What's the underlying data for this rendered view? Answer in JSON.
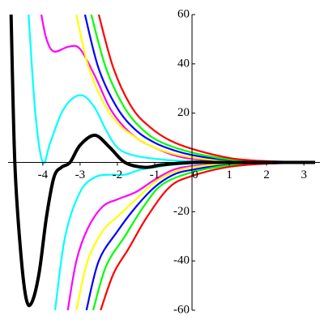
{
  "chart_data": {
    "type": "line",
    "xlim": [
      -4.93,
      3.43
    ],
    "ylim": [
      -60,
      60
    ],
    "xticks": [
      -4,
      -3,
      -2,
      -1,
      0,
      1,
      2,
      3
    ],
    "yticks": [
      -60,
      -40,
      -20,
      20,
      40,
      60
    ],
    "series": [
      {
        "color": "#00ffff",
        "x": [
          -4.38,
          -4.2,
          -4.0,
          -3.8,
          -3.5,
          -3.2,
          -2.9,
          -2.6,
          -2.3,
          -2.0,
          -1.6,
          -1.0,
          0,
          3.3
        ],
        "values": [
          60,
          20,
          0,
          8,
          20,
          26,
          27,
          22,
          13,
          6,
          3,
          1.5,
          0.5,
          0
        ]
      },
      {
        "color": "#00ffff",
        "x": [
          -3.67,
          -3.4,
          -3.0,
          -2.6,
          -2.2,
          -1.8,
          -1.4,
          -1.0,
          0,
          3.3
        ],
        "values": [
          -60,
          -30,
          -12,
          -6,
          -5,
          -5,
          -3,
          -2,
          -0.5,
          0
        ]
      },
      {
        "color": "#ff00ff",
        "x": [
          -4.04,
          -3.9,
          -3.7,
          -3.3,
          -3.0,
          -2.6,
          -2.2,
          -1.8,
          -1.4,
          -1.0,
          -0.5,
          0,
          1,
          3.3
        ],
        "values": [
          60,
          50,
          45,
          47,
          46,
          35,
          22,
          14,
          9,
          6,
          3,
          1.5,
          0.5,
          0
        ]
      },
      {
        "color": "#ff00ff",
        "x": [
          -3.33,
          -3.1,
          -2.8,
          -2.4,
          -2.0,
          -1.5,
          -1.0,
          -0.5,
          0,
          1,
          3.3
        ],
        "values": [
          -60,
          -40,
          -27,
          -18,
          -15,
          -12,
          -7,
          -3,
          -1.5,
          -0.5,
          0
        ]
      },
      {
        "color": "#ffff00",
        "x": [
          -3.1,
          -2.8,
          -2.4,
          -2.0,
          -1.5,
          -1.0,
          -0.5,
          0,
          1,
          3.3
        ],
        "values": [
          60,
          40,
          25,
          16,
          10,
          6,
          3.5,
          2,
          0.6,
          0
        ]
      },
      {
        "color": "#ffff00",
        "x": [
          -3.1,
          -2.8,
          -2.4,
          -2.0,
          -1.5,
          -1.0,
          -0.5,
          0,
          1,
          3.3
        ],
        "values": [
          -60,
          -40,
          -28,
          -22,
          -15,
          -8,
          -4,
          -2,
          -0.6,
          0
        ]
      },
      {
        "color": "#0000ff",
        "x": [
          -2.87,
          -2.5,
          -2.0,
          -1.5,
          -1.0,
          -0.5,
          0,
          1,
          3.3
        ],
        "values": [
          60,
          38,
          22,
          13,
          8,
          5,
          3,
          1,
          0
        ]
      },
      {
        "color": "#0000ff",
        "x": [
          -2.83,
          -2.5,
          -2.0,
          -1.5,
          -1.0,
          -0.5,
          0,
          1,
          3.3
        ],
        "values": [
          -60,
          -40,
          -28,
          -18,
          -10,
          -5,
          -3,
          -1,
          0
        ]
      },
      {
        "color": "#00ff00",
        "x": [
          -2.7,
          -2.3,
          -1.8,
          -1.3,
          -0.8,
          0,
          1,
          2,
          3.3
        ],
        "values": [
          60,
          38,
          22,
          13,
          8,
          4,
          1.2,
          0.4,
          0
        ]
      },
      {
        "color": "#00ff00",
        "x": [
          -2.65,
          -2.3,
          -1.8,
          -1.3,
          -0.8,
          0,
          1,
          2,
          3.3
        ],
        "values": [
          -60,
          -42,
          -30,
          -18,
          -9,
          -4,
          -1.2,
          -0.4,
          0
        ]
      },
      {
        "color": "#ff0000",
        "x": [
          -2.5,
          -2.1,
          -1.6,
          -1.1,
          -0.6,
          0,
          1,
          2,
          3.3
        ],
        "values": [
          60,
          38,
          22,
          14,
          9,
          5.5,
          1.8,
          0.5,
          0
        ]
      },
      {
        "color": "#ff0000",
        "x": [
          -2.45,
          -2.1,
          -1.7,
          -1.2,
          -0.6,
          0,
          1,
          2,
          3.3
        ],
        "values": [
          -60,
          -45,
          -35,
          -22,
          -10,
          -5.5,
          -1.8,
          -0.5,
          0
        ]
      },
      {
        "color": "#000000",
        "x": [
          -4.85,
          -4.75,
          -4.6,
          -4.45,
          -4.3,
          -4.1,
          -3.9,
          -3.7,
          -3.5,
          -3.27,
          -3.0,
          -2.6,
          -2.2,
          -1.8,
          -1.27,
          -0.8,
          0,
          1,
          3.3
        ],
        "values": [
          60,
          0,
          -35,
          -55,
          -57,
          -45,
          -22,
          -6,
          -2,
          0,
          7,
          11,
          6,
          0,
          -2,
          -1,
          0,
          0,
          0
        ]
      }
    ]
  }
}
